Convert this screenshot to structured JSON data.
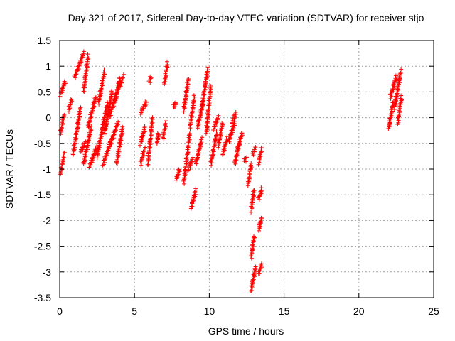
{
  "chart_data": {
    "type": "scatter",
    "title": "Day 321 of 2017, Sidereal Day-to-day VTEC variation (SDTVAR) for receiver stjo",
    "xlabel": "GPS time / hours",
    "ylabel": "SDTVAR / TECUs",
    "xlim": [
      0,
      25
    ],
    "ylim": [
      -3.5,
      1.5
    ],
    "xticks": [
      0,
      5,
      10,
      15,
      20,
      25
    ],
    "xtick_labels": [
      "0",
      "5",
      "10",
      "15",
      "20",
      "25"
    ],
    "yticks": [
      -3.5,
      -3,
      -2.5,
      -2,
      -1.5,
      -1,
      -0.5,
      0,
      0.5,
      1,
      1.5
    ],
    "ytick_labels": [
      "-3.5",
      "-3",
      "-2.5",
      "-2",
      "-1.5",
      "-1",
      "-0.5",
      "0",
      "0.5",
      "1",
      "1.5"
    ],
    "grid": true,
    "marker": "+",
    "color": "#ff0000",
    "series": [
      {
        "name": "SDTVAR",
        "tracks": [
          {
            "x0": 0.05,
            "x1": 0.3,
            "y0": -1.1,
            "y1": -0.7
          },
          {
            "x0": 0.05,
            "x1": 0.3,
            "y0": -0.3,
            "y1": 0.05
          },
          {
            "x0": 0.05,
            "x1": 0.35,
            "y0": 0.45,
            "y1": 0.7
          },
          {
            "x0": 0.6,
            "x1": 0.8,
            "y0": 0.15,
            "y1": 0.35
          },
          {
            "x0": 0.9,
            "x1": 1.4,
            "y0": -0.7,
            "y1": 0.2
          },
          {
            "x0": 1.0,
            "x1": 1.6,
            "y0": 0.8,
            "y1": 1.25
          },
          {
            "x0": 1.4,
            "x1": 1.7,
            "y0": -0.65,
            "y1": -0.5
          },
          {
            "x0": 1.6,
            "x1": 1.9,
            "y0": 0.5,
            "y1": 1.2
          },
          {
            "x0": 1.6,
            "x1": 2.1,
            "y0": -0.9,
            "y1": -0.2
          },
          {
            "x0": 1.9,
            "x1": 2.4,
            "y0": -0.2,
            "y1": 0.4
          },
          {
            "x0": 2.0,
            "x1": 2.5,
            "y0": -0.95,
            "y1": -0.55
          },
          {
            "x0": 2.5,
            "x1": 3.2,
            "y0": -0.75,
            "y1": 0.3
          },
          {
            "x0": 2.6,
            "x1": 3.0,
            "y0": 0.3,
            "y1": 0.9
          },
          {
            "x0": 2.9,
            "x1": 3.5,
            "y0": -0.9,
            "y1": -0.4
          },
          {
            "x0": 3.0,
            "x1": 3.5,
            "y0": -0.3,
            "y1": 0.5
          },
          {
            "x0": 3.3,
            "x1": 3.9,
            "y0": 0.0,
            "y1": 0.55
          },
          {
            "x0": 3.4,
            "x1": 3.9,
            "y0": -0.5,
            "y1": -0.1
          },
          {
            "x0": 3.7,
            "x1": 4.0,
            "y0": 0.3,
            "y1": 0.75
          },
          {
            "x0": 3.8,
            "x1": 4.2,
            "y0": -0.9,
            "y1": -0.2
          },
          {
            "x0": 4.0,
            "x1": 4.25,
            "y0": 0.6,
            "y1": 0.8
          },
          {
            "x0": 5.4,
            "x1": 5.7,
            "y0": -0.9,
            "y1": -0.6
          },
          {
            "x0": 5.4,
            "x1": 5.7,
            "y0": -0.5,
            "y1": -0.2
          },
          {
            "x0": 5.4,
            "x1": 5.8,
            "y0": 0.1,
            "y1": 0.3
          },
          {
            "x0": 5.9,
            "x1": 6.2,
            "y0": -0.9,
            "y1": 0.0
          },
          {
            "x0": 6.0,
            "x1": 6.1,
            "y0": 0.7,
            "y1": 0.8
          },
          {
            "x0": 6.5,
            "x1": 6.6,
            "y0": -0.5,
            "y1": -0.3
          },
          {
            "x0": 6.9,
            "x1": 7.1,
            "y0": -0.4,
            "y1": -0.1
          },
          {
            "x0": 7.0,
            "x1": 7.2,
            "y0": 0.65,
            "y1": 1.05
          },
          {
            "x0": 7.6,
            "x1": 7.8,
            "y0": 0.2,
            "y1": 0.3
          },
          {
            "x0": 7.8,
            "x1": 8.0,
            "y0": -1.2,
            "y1": -1.0
          },
          {
            "x0": 8.3,
            "x1": 8.6,
            "y0": 0.15,
            "y1": 0.75
          },
          {
            "x0": 8.3,
            "x1": 8.7,
            "y0": -1.25,
            "y1": -0.3
          },
          {
            "x0": 8.6,
            "x1": 8.9,
            "y0": -1.0,
            "y1": -0.8
          },
          {
            "x0": 8.7,
            "x1": 9.0,
            "y0": -0.2,
            "y1": 0.4
          },
          {
            "x0": 8.8,
            "x1": 9.1,
            "y0": -1.75,
            "y1": -1.4
          },
          {
            "x0": 9.1,
            "x1": 9.5,
            "y0": -0.9,
            "y1": -0.4
          },
          {
            "x0": 9.2,
            "x1": 9.6,
            "y0": -0.2,
            "y1": 0.3
          },
          {
            "x0": 9.5,
            "x1": 9.9,
            "y0": 0.2,
            "y1": 0.95
          },
          {
            "x0": 9.8,
            "x1": 10.1,
            "y0": -0.3,
            "y1": 0.6
          },
          {
            "x0": 10.1,
            "x1": 10.5,
            "y0": -0.9,
            "y1": -0.3
          },
          {
            "x0": 10.3,
            "x1": 10.6,
            "y0": -0.2,
            "y1": 0.0
          },
          {
            "x0": 10.6,
            "x1": 10.9,
            "y0": -0.55,
            "y1": -0.1
          },
          {
            "x0": 10.9,
            "x1": 11.2,
            "y0": -0.7,
            "y1": -0.4
          },
          {
            "x0": 11.3,
            "x1": 11.7,
            "y0": -0.45,
            "y1": -0.1
          },
          {
            "x0": 11.5,
            "x1": 11.8,
            "y0": -0.1,
            "y1": 0.1
          },
          {
            "x0": 11.7,
            "x1": 12.0,
            "y0": -0.9,
            "y1": -0.5
          },
          {
            "x0": 11.9,
            "x1": 12.2,
            "y0": -0.6,
            "y1": -0.3
          },
          {
            "x0": 12.3,
            "x1": 12.5,
            "y0": -0.85,
            "y1": -0.8
          },
          {
            "x0": 12.6,
            "x1": 12.8,
            "y0": -1.3,
            "y1": -0.9
          },
          {
            "x0": 12.8,
            "x1": 13.0,
            "y0": -1.8,
            "y1": -1.4
          },
          {
            "x0": 12.8,
            "x1": 13.0,
            "y0": -2.7,
            "y1": -2.3
          },
          {
            "x0": 12.8,
            "x1": 13.1,
            "y0": -3.35,
            "y1": -2.9
          },
          {
            "x0": 12.9,
            "x1": 13.1,
            "y0": -0.7,
            "y1": -0.6
          },
          {
            "x0": 13.3,
            "x1": 13.5,
            "y0": -0.9,
            "y1": -0.6
          },
          {
            "x0": 13.3,
            "x1": 13.5,
            "y0": -1.6,
            "y1": -1.4
          },
          {
            "x0": 13.3,
            "x1": 13.5,
            "y0": -2.2,
            "y1": -1.95
          },
          {
            "x0": 13.3,
            "x1": 13.5,
            "y0": -3.05,
            "y1": -2.85
          },
          {
            "x0": 22.0,
            "x1": 22.3,
            "y0": -0.2,
            "y1": 0.3
          },
          {
            "x0": 22.1,
            "x1": 22.5,
            "y0": 0.4,
            "y1": 0.8
          },
          {
            "x0": 22.4,
            "x1": 22.8,
            "y0": 0.2,
            "y1": 0.9
          },
          {
            "x0": 22.6,
            "x1": 22.85,
            "y0": -0.1,
            "y1": 0.4
          }
        ]
      }
    ]
  }
}
